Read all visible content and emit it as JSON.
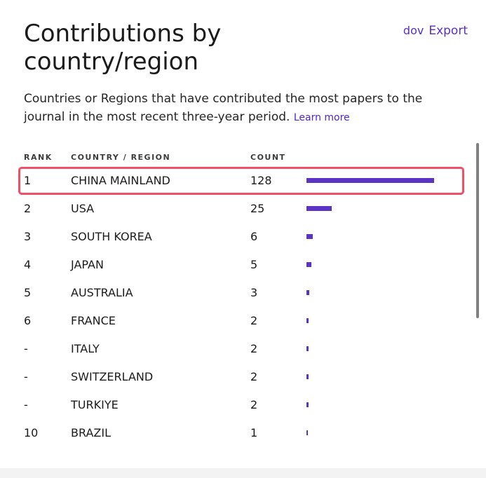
{
  "header": {
    "title": "Contributions by country/region",
    "export_icon_text": "dov",
    "export_label": "Export"
  },
  "description": {
    "text": "Countries or Regions that have contributed the most papers to the journal in the most recent three-year period.",
    "learn_more": "Learn more"
  },
  "table": {
    "columns": {
      "rank": "RANK",
      "country": "COUNTRY / REGION",
      "count": "COUNT"
    },
    "max_count": 128,
    "rows": [
      {
        "rank": "1",
        "country": "CHINA MAINLAND",
        "count": "128",
        "value": 128,
        "highlighted": true
      },
      {
        "rank": "2",
        "country": "USA",
        "count": "25",
        "value": 25
      },
      {
        "rank": "3",
        "country": "SOUTH KOREA",
        "count": "6",
        "value": 6
      },
      {
        "rank": "4",
        "country": "JAPAN",
        "count": "5",
        "value": 5
      },
      {
        "rank": "5",
        "country": "AUSTRALIA",
        "count": "3",
        "value": 3
      },
      {
        "rank": "6",
        "country": "FRANCE",
        "count": "2",
        "value": 2
      },
      {
        "rank": "-",
        "country": "ITALY",
        "count": "2",
        "value": 2
      },
      {
        "rank": "-",
        "country": "SWITZERLAND",
        "count": "2",
        "value": 2
      },
      {
        "rank": "-",
        "country": "TURKIYE",
        "count": "2",
        "value": 2
      },
      {
        "rank": "10",
        "country": "BRAZIL",
        "count": "1",
        "value": 1
      }
    ]
  },
  "colors": {
    "accent": "#5b34c6",
    "highlight_border": "#ef5065"
  }
}
